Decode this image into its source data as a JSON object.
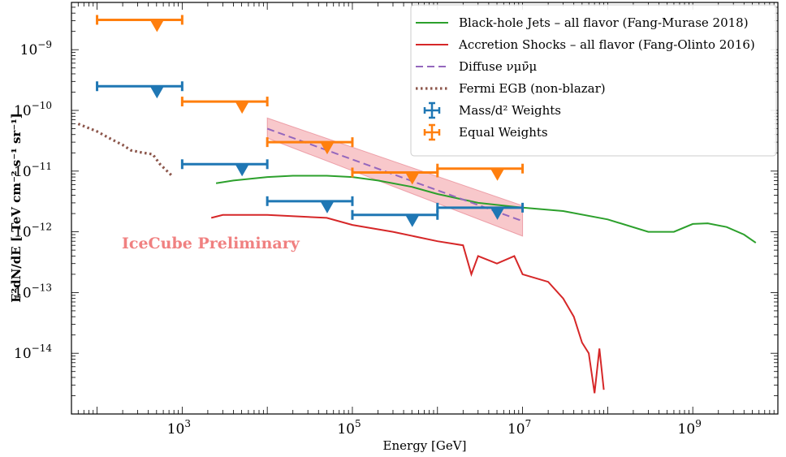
{
  "chart_data": {
    "type": "line",
    "xlabel": "Energy [GeV]",
    "ylabel": "E²dN/dE [ TeV cm⁻² s⁻¹ sr⁻¹]",
    "xscale": "log",
    "yscale": "log",
    "xlim": [
      50,
      10000000000.0
    ],
    "ylim": [
      1e-15,
      6e-09
    ],
    "xticks": [
      {
        "value": 1000,
        "mantissa": "10",
        "exp": "3"
      },
      {
        "value": 100000,
        "mantissa": "10",
        "exp": "5"
      },
      {
        "value": 10000000,
        "mantissa": "10",
        "exp": "7"
      },
      {
        "value": 1000000000,
        "mantissa": "10",
        "exp": "9"
      }
    ],
    "yticks": [
      {
        "value": 1e-09,
        "mantissa": "10",
        "exp": "−9"
      },
      {
        "value": 1e-10,
        "mantissa": "10",
        "exp": "−10"
      },
      {
        "value": 1e-11,
        "mantissa": "10",
        "exp": "−11"
      },
      {
        "value": 1e-12,
        "mantissa": "10",
        "exp": "−12"
      },
      {
        "value": 1e-13,
        "mantissa": "10",
        "exp": "−13"
      },
      {
        "value": 1e-14,
        "mantissa": "10",
        "exp": "−14"
      }
    ],
    "annotation": "IceCube Preliminary",
    "legend_position": "top-right",
    "colors": {
      "jets": "#2ca02c",
      "shocks": "#d62728",
      "diffuse": "#9467bd",
      "band": "#f4a3a8",
      "fermi": "#8c564b",
      "mass": "#1f77b4",
      "equal": "#ff7f0e"
    },
    "series": [
      {
        "name": "Black-hole Jets – all flavor (Fang-Murase 2018)",
        "style": "solid",
        "color_key": "jets",
        "points": [
          [
            2500.0,
            6.3e-12
          ],
          [
            4000.0,
            7e-12
          ],
          [
            10000.0,
            8e-12
          ],
          [
            20000.0,
            8.4e-12
          ],
          [
            50000.0,
            8.4e-12
          ],
          [
            100000.0,
            8e-12
          ],
          [
            200000.0,
            7e-12
          ],
          [
            500000.0,
            5.5e-12
          ],
          [
            1000000.0,
            4.2e-12
          ],
          [
            3000000.0,
            3e-12
          ],
          [
            10000000.0,
            2.5e-12
          ],
          [
            30000000.0,
            2.2e-12
          ],
          [
            100000000.0,
            1.6e-12
          ],
          [
            300000000.0,
            1e-12
          ],
          [
            600000000.0,
            1e-12
          ],
          [
            1000000000.0,
            1.35e-12
          ],
          [
            1500000000.0,
            1.38e-12
          ],
          [
            2500000000.0,
            1.2e-12
          ],
          [
            4000000000.0,
            9e-13
          ],
          [
            5500000000.0,
            6.6e-13
          ]
        ]
      },
      {
        "name": "Accretion Shocks – all flavor (Fang-Olinto 2016)",
        "style": "solid",
        "color_key": "shocks",
        "points": [
          [
            2200.0,
            1.7e-12
          ],
          [
            3000.0,
            1.9e-12
          ],
          [
            10000.0,
            1.9e-12
          ],
          [
            50000.0,
            1.7e-12
          ],
          [
            100000.0,
            1.3e-12
          ],
          [
            300000.0,
            1e-12
          ],
          [
            1000000.0,
            7e-13
          ],
          [
            2000000.0,
            6e-13
          ],
          [
            2500000.0,
            2e-13
          ],
          [
            3000000.0,
            4e-13
          ],
          [
            5000000.0,
            3e-13
          ],
          [
            8000000.0,
            4e-13
          ],
          [
            10000000.0,
            2e-13
          ],
          [
            20000000.0,
            1.5e-13
          ],
          [
            30000000.0,
            8e-14
          ],
          [
            40000000.0,
            4e-14
          ],
          [
            50000000.0,
            1.5e-14
          ],
          [
            60000000.0,
            1e-14
          ],
          [
            70000000.0,
            2.2e-15
          ],
          [
            80000000.0,
            1.2e-14
          ],
          [
            90000000.0,
            2.5e-15
          ]
        ]
      },
      {
        "name": "Diffuse νμν̄μ",
        "style": "dashed",
        "color_key": "diffuse",
        "points": [
          [
            10000.0,
            5e-11
          ],
          [
            10000000.0,
            1.5e-12
          ]
        ],
        "band_upper": [
          [
            10000.0,
            7.5e-11
          ],
          [
            10000000.0,
            2.7e-12
          ]
        ],
        "band_lower": [
          [
            10000.0,
            3.5e-11
          ],
          [
            10000000.0,
            8.5e-13
          ]
        ]
      },
      {
        "name": "Fermi EGB (non-blazar)",
        "style": "dotted",
        "color_key": "fermi",
        "points": [
          [
            60,
            6e-11
          ],
          [
            100,
            4.5e-11
          ],
          [
            150,
            3.3e-11
          ],
          [
            200,
            2.7e-11
          ],
          [
            250,
            2.2e-11
          ],
          [
            350,
            2e-11
          ],
          [
            450,
            1.9e-11
          ],
          [
            550,
            1.3e-11
          ],
          [
            750,
            8.5e-12
          ]
        ]
      },
      {
        "name": "Mass/d² Weights",
        "style": "upper-limits",
        "color_key": "mass",
        "limits": [
          {
            "emin": 100.0,
            "emax": 1000.0,
            "value": 2.5e-10
          },
          {
            "emin": 1000.0,
            "emax": 10000.0,
            "value": 1.3e-11
          },
          {
            "emin": 10000.0,
            "emax": 100000.0,
            "value": 3.2e-12
          },
          {
            "emin": 100000.0,
            "emax": 1000000.0,
            "value": 1.9e-12
          },
          {
            "emin": 1000000.0,
            "emax": 10000000.0,
            "value": 2.5e-12
          }
        ]
      },
      {
        "name": "Equal Weights",
        "style": "upper-limits",
        "color_key": "equal",
        "limits": [
          {
            "emin": 100.0,
            "emax": 1000.0,
            "value": 3.1e-09
          },
          {
            "emin": 1000.0,
            "emax": 10000.0,
            "value": 1.4e-10
          },
          {
            "emin": 10000.0,
            "emax": 100000.0,
            "value": 3e-11
          },
          {
            "emin": 100000.0,
            "emax": 1000000.0,
            "value": 9.5e-12
          },
          {
            "emin": 1000000.0,
            "emax": 10000000.0,
            "value": 1.1e-11
          }
        ]
      }
    ]
  }
}
